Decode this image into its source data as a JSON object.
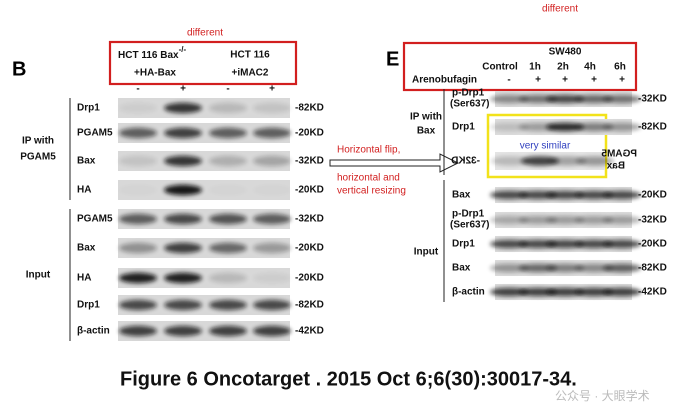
{
  "left_panel": {
    "label": "B",
    "note": "different",
    "header": {
      "line1": "HCT 116 Bax",
      "line1_sup": "-/-",
      "line2": "+HA-Bax",
      "line3": "HCT 116",
      "line4": "+iMAC2",
      "signs": [
        "-",
        "+",
        "-",
        "+"
      ]
    },
    "groups": [
      {
        "lines": [
          "IP with",
          "PGAM5"
        ],
        "rows": [
          {
            "name": "Drp1",
            "size": "-82KD"
          },
          {
            "name": "PGAM5",
            "size": "-20KD"
          },
          {
            "name": "Bax",
            "size": "-32KD"
          },
          {
            "name": "HA",
            "size": "-20KD"
          }
        ]
      },
      {
        "lines": [
          "Input"
        ],
        "rows": [
          {
            "name": "PGAM5",
            "size": "-32KD"
          },
          {
            "name": "Bax",
            "size": "-20KD"
          },
          {
            "name": "HA",
            "size": "-20KD"
          },
          {
            "name": "Drp1",
            "size": "-82KD"
          },
          {
            "name": "β-actin",
            "size": "-42KD"
          }
        ]
      }
    ]
  },
  "annotation": {
    "lines": [
      "Horizontal flip,",
      "horizontal and",
      "vertical resizing"
    ]
  },
  "right_panel": {
    "label": "E",
    "note": "different",
    "header": {
      "cell_line": "SW480",
      "times": [
        "Control",
        "1h",
        "2h",
        "4h",
        "6h"
      ],
      "treatment": "Arenobufagin",
      "signs": [
        "-",
        "+",
        "+",
        "+",
        "+"
      ]
    },
    "groups": [
      {
        "lines": [
          "IP with",
          "Bax"
        ],
        "rows": [
          {
            "name": "p-Drp1",
            "name2": "(Ser637)",
            "size": "-32KD"
          },
          {
            "name": "Drp1",
            "size": "-82KD"
          }
        ]
      },
      {
        "lines": [
          "Input"
        ],
        "rows": [
          {
            "name": "Bax",
            "size": "-20KD"
          },
          {
            "name": "p-Drp1",
            "name2": "(Ser637)",
            "size": "-32KD"
          },
          {
            "name": "Drp1",
            "size": "-20KD"
          },
          {
            "name": "Bax",
            "size": "-82KD"
          },
          {
            "name": "β-actin",
            "size": "-42KD"
          }
        ]
      }
    ],
    "mirrored_row": {
      "labels": [
        "PGAM5",
        "Bax"
      ],
      "size": "-32KD"
    },
    "highlight": "very similar"
  },
  "caption": "Figure 6  Oncotarget . 2015 Oct 6;6(30):30017-34.",
  "watermark": "公众号 · 大眼学术"
}
